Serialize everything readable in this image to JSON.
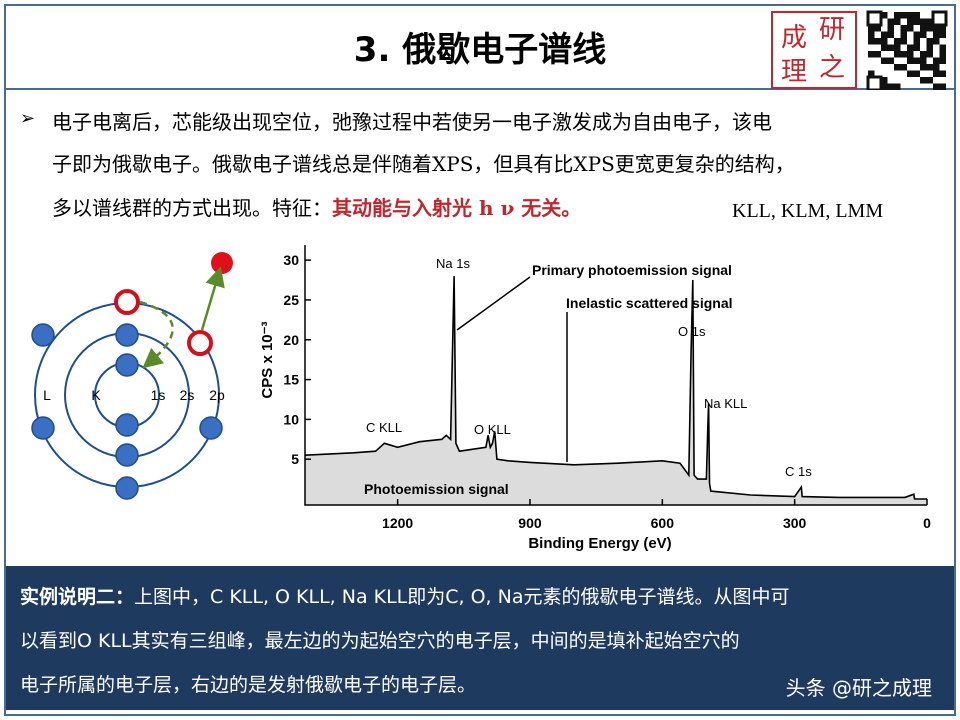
{
  "header": {
    "title": "3. 俄歇电子谱线",
    "logo": [
      "研",
      "成",
      "理",
      "之"
    ]
  },
  "bullet": {
    "lines": [
      "电子电离后，芯能级出现空位，弛豫过程中若使另一电子激发成为自由电子，该电",
      "子即为俄歇电子。俄歇电子谱线总是伴随着XPS，但具有比XPS更宽更复杂的结构，",
      "多以谱线群的方式出现。特征："
    ],
    "highlight": "其动能与入射光 h ν 无关。",
    "side_note": "KLL, KLM, LMM"
  },
  "diagram": {
    "labels": [
      "L",
      "K",
      "1s",
      "2s",
      "2p"
    ]
  },
  "chart_data": {
    "type": "line",
    "xlabel": "Binding Energy (eV)",
    "ylabel": "CPS x 10⁻³",
    "x": [
      1410,
      1300,
      1250,
      1230,
      1200,
      1150,
      1100,
      1090,
      1080,
      1072,
      1068,
      1060,
      1000,
      995,
      990,
      985,
      980,
      975,
      950,
      900,
      800,
      700,
      600,
      560,
      540,
      535,
      531,
      528,
      520,
      500,
      497,
      495,
      493,
      490,
      400,
      300,
      285,
      283,
      200,
      50,
      30,
      28,
      0
    ],
    "series": [
      {
        "name": "spectrum",
        "color": "#000000",
        "values": [
          5.5,
          5.8,
          6,
          7,
          6.5,
          7.2,
          7.5,
          8,
          7.5,
          28,
          7,
          6,
          6.5,
          8,
          6.5,
          7,
          8.5,
          5,
          4.8,
          4.6,
          4.3,
          4.5,
          4.8,
          4.5,
          3,
          18,
          27.5,
          3,
          2.5,
          2.5,
          9,
          12,
          2,
          1,
          0.5,
          0.3,
          1.5,
          0.3,
          0.2,
          0.2,
          0.6,
          0,
          0
        ]
      }
    ],
    "xlim": [
      1410,
      0
    ],
    "ylim": [
      -0.75,
      31.9
    ],
    "xticks": [
      1200,
      900,
      600,
      300,
      0
    ],
    "yticks": [
      5,
      10,
      15,
      20,
      25,
      30
    ],
    "annotations": [
      "Na 1s",
      "Primary photoemission signal",
      "Inelastic scattered signal",
      "O 1s",
      "Na KLL",
      "C KLL",
      "O KLL",
      "C 1s",
      "Photoemission signal"
    ]
  },
  "caption": {
    "label": "实例说明二：",
    "lines": [
      "上图中，C KLL, O KLL, Na KLL即为C, O, Na元素的俄歇电子谱线。从图中可",
      "以看到O  KLL其实有三组峰，最左边的为起始空穴的电子层，中间的是填补起始空穴的",
      "电子所属的电子层，右边的是发射俄歇电子的电子层。"
    ]
  },
  "watermark": "头条 @研之成理"
}
